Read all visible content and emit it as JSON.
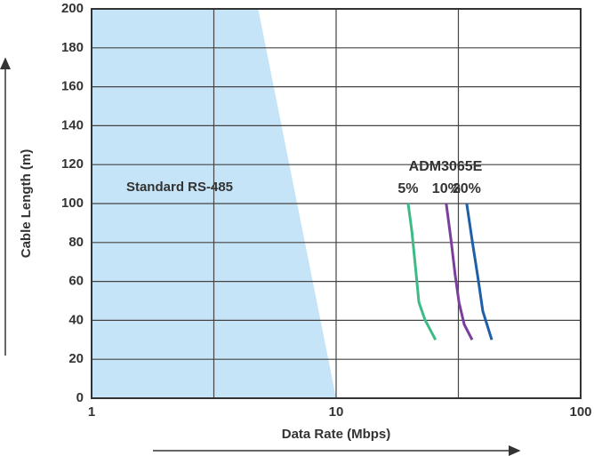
{
  "chart_data": {
    "type": "line",
    "x_label": "Data Rate (Mbps)",
    "y_label": "Cable Length (m)",
    "annotation": "ADM3065E",
    "x_scale": "log",
    "xlim": [
      1,
      100
    ],
    "xticks": [
      1,
      10,
      100
    ],
    "x_minor_grid": [
      3.162,
      31.62
    ],
    "ylim": [
      0,
      200
    ],
    "yticks": [
      0,
      20,
      40,
      60,
      80,
      100,
      120,
      140,
      160,
      180,
      200
    ],
    "grid": true,
    "shaded_region": {
      "name": "Standard RS-485",
      "color": "#c6e4f7",
      "x": [
        4.8,
        10
      ],
      "values": [
        200,
        0
      ]
    },
    "series": [
      {
        "name": "5%",
        "color": "#3dbb86",
        "x": [
          19.7,
          20.4,
          21.1,
          21.8,
          23.1,
          25.5
        ],
        "values": [
          100,
          85.8,
          67.6,
          49.3,
          40.2,
          30
        ]
      },
      {
        "name": "10%",
        "color": "#7a3f9d",
        "x": [
          28.2,
          29.5,
          30.7,
          31.8,
          33.4,
          36.0
        ],
        "values": [
          100,
          81.3,
          63,
          49.3,
          37.9,
          30
        ]
      },
      {
        "name": "20%",
        "color": "#1f5fa8",
        "x": [
          34.2,
          36.0,
          37.9,
          39.8,
          43.3
        ],
        "values": [
          100,
          81,
          63,
          44.7,
          30
        ]
      }
    ]
  }
}
